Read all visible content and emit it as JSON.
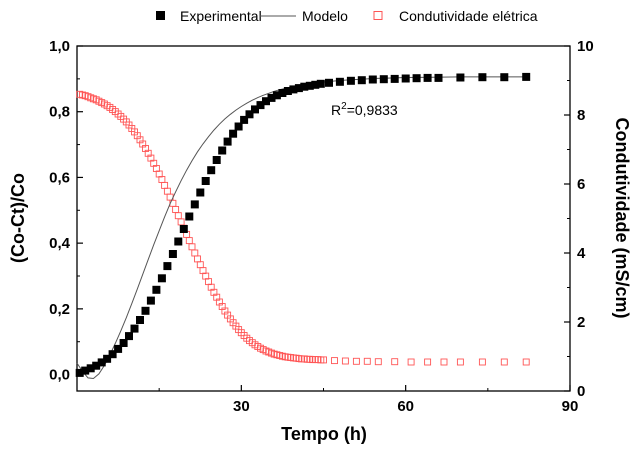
{
  "chart_data": {
    "type": "scatter",
    "xlabel": "Tempo (h)",
    "ylabel_left": "(Co-Ct)/Co",
    "ylabel_right": "Condutividade (mS/cm)",
    "xlim": [
      0,
      90
    ],
    "ylim_left": [
      -0.05,
      1.0
    ],
    "ylim_right": [
      0,
      10
    ],
    "x_ticks": [
      "30",
      "60",
      "90"
    ],
    "y_ticks_left": [
      "0,0",
      "0,2",
      "0,4",
      "0,6",
      "0,8",
      "1,0"
    ],
    "y_ticks_right": [
      "0",
      "2",
      "4",
      "6",
      "8",
      "10"
    ],
    "legend": {
      "position": "top",
      "entries": [
        "Experimental",
        "Modelo",
        "Condutividade elétrica"
      ]
    },
    "annotation": {
      "base": "R",
      "sup": "2",
      "rest": "=0,9833"
    },
    "colors": {
      "experimental": "#000000",
      "modelo": "#555555",
      "condutividade": "#ff5555"
    },
    "series": [
      {
        "name": "Experimental",
        "axis": "left",
        "marker": "filled-square",
        "x": [
          0.5,
          1.5,
          2.5,
          3.5,
          4.5,
          5.5,
          6.5,
          7.5,
          8.5,
          9.5,
          10.5,
          11.5,
          12.5,
          13.5,
          14.5,
          15.5,
          16.5,
          17.5,
          18.5,
          19.5,
          20.5,
          21.5,
          22.5,
          23.5,
          24.5,
          25.5,
          26.5,
          27.5,
          28.5,
          29.5,
          30.5,
          31.5,
          32.5,
          33.5,
          34.5,
          35.5,
          36.5,
          37.5,
          38.5,
          39.5,
          40.5,
          41.5,
          42.5,
          43.5,
          44.5,
          46,
          48,
          50,
          52,
          54,
          56,
          58,
          60,
          62,
          64,
          66,
          70,
          74,
          78,
          82
        ],
        "y": [
          0.005,
          0.012,
          0.019,
          0.027,
          0.037,
          0.048,
          0.062,
          0.078,
          0.096,
          0.117,
          0.14,
          0.166,
          0.194,
          0.225,
          0.258,
          0.293,
          0.33,
          0.367,
          0.405,
          0.443,
          0.481,
          0.518,
          0.554,
          0.589,
          0.622,
          0.653,
          0.682,
          0.709,
          0.733,
          0.755,
          0.775,
          0.792,
          0.807,
          0.82,
          0.832,
          0.842,
          0.85,
          0.857,
          0.863,
          0.868,
          0.872,
          0.876,
          0.879,
          0.882,
          0.885,
          0.888,
          0.891,
          0.894,
          0.896,
          0.898,
          0.899,
          0.9,
          0.901,
          0.902,
          0.903,
          0.903,
          0.904,
          0.905,
          0.905,
          0.906
        ]
      },
      {
        "name": "Modelo",
        "axis": "left",
        "marker": "line",
        "x": [
          0,
          1,
          2,
          3,
          4,
          5,
          6,
          7,
          8,
          9,
          10,
          11,
          12,
          13,
          14,
          15,
          16,
          17,
          18,
          19,
          20,
          21,
          22,
          23,
          24,
          25,
          26,
          27,
          28,
          29,
          30,
          31,
          32,
          33,
          34,
          35,
          36,
          37,
          38,
          39,
          40,
          42,
          44,
          46,
          48,
          50,
          52,
          54,
          56,
          58,
          60,
          65,
          70,
          75,
          82
        ],
        "y": [
          0.035,
          0.01,
          -0.01,
          -0.012,
          0.002,
          0.028,
          0.06,
          0.095,
          0.133,
          0.173,
          0.216,
          0.26,
          0.305,
          0.35,
          0.395,
          0.438,
          0.48,
          0.52,
          0.556,
          0.59,
          0.622,
          0.651,
          0.678,
          0.702,
          0.724,
          0.744,
          0.762,
          0.778,
          0.792,
          0.805,
          0.816,
          0.826,
          0.835,
          0.843,
          0.85,
          0.856,
          0.862,
          0.867,
          0.871,
          0.875,
          0.878,
          0.884,
          0.888,
          0.892,
          0.895,
          0.897,
          0.899,
          0.901,
          0.902,
          0.903,
          0.904,
          0.905,
          0.906,
          0.906,
          0.906
        ]
      },
      {
        "name": "Condutividade elétrica",
        "axis": "right",
        "marker": "open-square",
        "x": [
          0.5,
          1.0,
          1.5,
          2.0,
          2.5,
          3.0,
          3.5,
          4.0,
          4.5,
          5.0,
          5.5,
          6.0,
          6.5,
          7.0,
          7.5,
          8.0,
          8.5,
          9.0,
          9.5,
          10.0,
          10.5,
          11.0,
          11.5,
          12.0,
          12.5,
          13.0,
          13.5,
          14.0,
          14.5,
          15.0,
          15.5,
          16.0,
          16.5,
          17.0,
          17.5,
          18.0,
          18.5,
          19.0,
          19.5,
          20.0,
          20.5,
          21.0,
          21.5,
          22.0,
          22.5,
          23.0,
          23.5,
          24.0,
          24.5,
          25.0,
          25.5,
          26.0,
          26.5,
          27.0,
          27.5,
          28.0,
          28.5,
          29.0,
          29.5,
          30.0,
          30.5,
          31.0,
          31.5,
          32.0,
          32.5,
          33.0,
          33.5,
          34.0,
          34.5,
          35.0,
          35.5,
          36.0,
          36.5,
          37.0,
          37.5,
          38.0,
          38.5,
          39.0,
          39.5,
          40.0,
          40.5,
          41.0,
          41.5,
          42.0,
          42.5,
          43.0,
          43.5,
          44.0,
          44.5,
          45.0,
          47,
          49,
          51,
          53,
          55,
          58,
          61,
          64,
          67,
          70,
          74,
          78,
          82
        ],
        "y": [
          8.6,
          8.58,
          8.56,
          8.53,
          8.5,
          8.47,
          8.44,
          8.4,
          8.36,
          8.32,
          8.27,
          8.22,
          8.16,
          8.1,
          8.03,
          7.96,
          7.88,
          7.8,
          7.71,
          7.61,
          7.51,
          7.4,
          7.28,
          7.16,
          7.03,
          6.89,
          6.75,
          6.6,
          6.45,
          6.29,
          6.13,
          5.96,
          5.79,
          5.62,
          5.44,
          5.26,
          5.08,
          4.9,
          4.72,
          4.54,
          4.36,
          4.18,
          4.0,
          3.83,
          3.66,
          3.49,
          3.33,
          3.17,
          3.01,
          2.86,
          2.72,
          2.58,
          2.45,
          2.32,
          2.2,
          2.09,
          1.98,
          1.88,
          1.78,
          1.69,
          1.61,
          1.53,
          1.46,
          1.4,
          1.34,
          1.29,
          1.24,
          1.2,
          1.16,
          1.13,
          1.1,
          1.07,
          1.05,
          1.03,
          1.01,
          0.99,
          0.98,
          0.97,
          0.96,
          0.95,
          0.94,
          0.93,
          0.93,
          0.92,
          0.92,
          0.91,
          0.91,
          0.91,
          0.9,
          0.9,
          0.88,
          0.87,
          0.86,
          0.86,
          0.85,
          0.85,
          0.84,
          0.84,
          0.84,
          0.84,
          0.84,
          0.84,
          0.84
        ]
      }
    ]
  }
}
